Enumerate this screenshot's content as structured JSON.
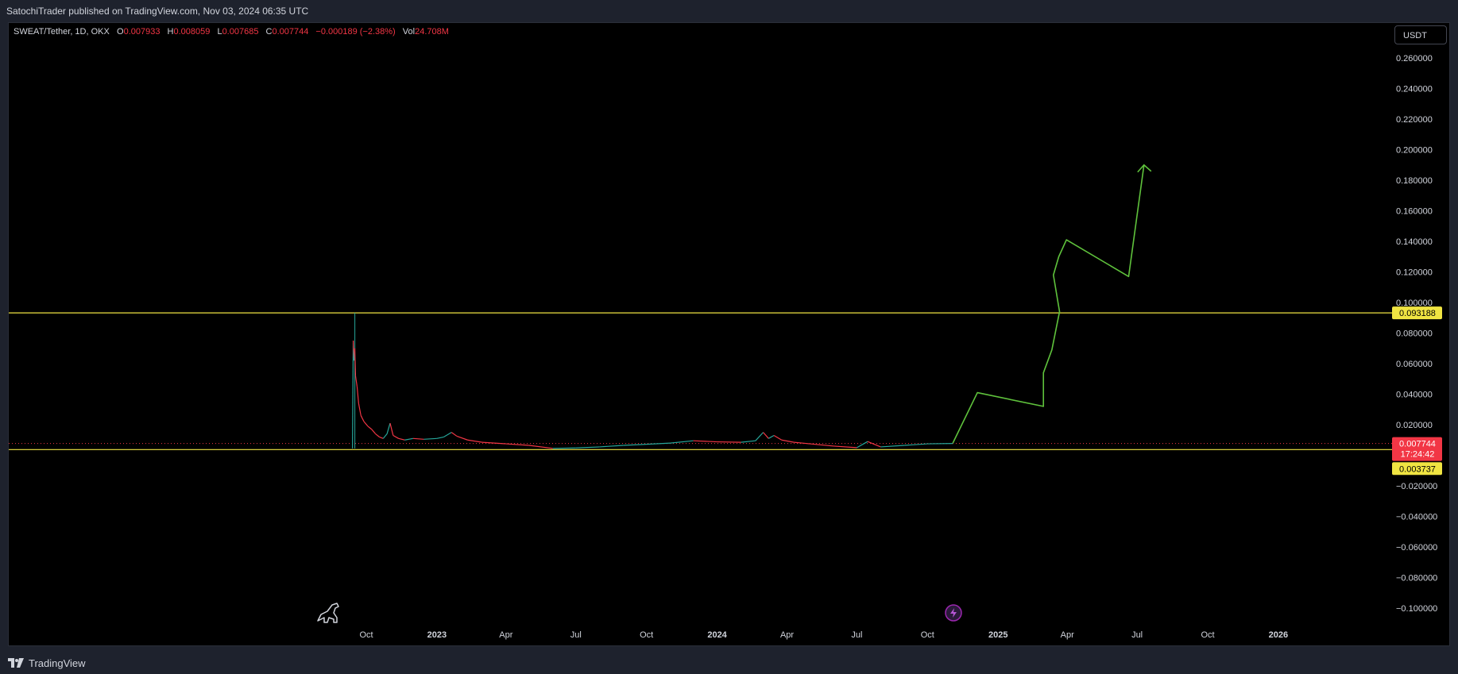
{
  "header": {
    "publish_line": "SatochiTrader published on TradingView.com, Nov 03, 2024 06:35 UTC"
  },
  "legend": {
    "symbol": "SWEAT/Tether, 1D, OKX",
    "open_label": "O",
    "open": "0.007933",
    "high_label": "H",
    "high": "0.008059",
    "low_label": "L",
    "low": "0.007685",
    "close_label": "C",
    "close": "0.007744",
    "change": "−0.000189 (−2.38%)",
    "vol_label": "Vol",
    "vol": "24.708M"
  },
  "currency_button": "USDT",
  "footer": {
    "brand": "TradingView"
  },
  "colors": {
    "background": "#000000",
    "up": "#26a69a",
    "down": "#f23645",
    "level_line": "#f0e442",
    "projection": "#5fc23c",
    "text": "#d1d4dc"
  },
  "chart_data": {
    "type": "line",
    "y_axis": {
      "ticks": [
        "0.260000",
        "0.240000",
        "0.220000",
        "0.200000",
        "0.180000",
        "0.160000",
        "0.140000",
        "0.120000",
        "0.100000",
        "0.080000",
        "0.060000",
        "0.040000",
        "0.020000",
        "−0.020000",
        "−0.040000",
        "−0.060000",
        "−0.080000",
        "−0.100000"
      ],
      "tick_values": [
        0.26,
        0.24,
        0.22,
        0.2,
        0.18,
        0.16,
        0.14,
        0.12,
        0.1,
        0.08,
        0.06,
        0.04,
        0.02,
        -0.02,
        -0.04,
        -0.06,
        -0.08,
        -0.1
      ],
      "range": [
        -0.108,
        0.27
      ]
    },
    "x_axis": {
      "ticks": [
        "Oct",
        "2023",
        "Apr",
        "Jul",
        "Oct",
        "2024",
        "Apr",
        "Jul",
        "Oct",
        "2025",
        "Apr",
        "Jul",
        "Oct",
        "2026"
      ],
      "tick_dates": [
        "2022-10-01",
        "2023-01-01",
        "2023-04-01",
        "2023-07-01",
        "2023-10-01",
        "2024-01-01",
        "2024-04-01",
        "2024-07-01",
        "2024-10-01",
        "2025-01-01",
        "2025-04-01",
        "2025-07-01",
        "2025-10-01",
        "2026-01-01"
      ]
    },
    "price_labels": [
      {
        "value": 0.093188,
        "text": "0.093188",
        "kind": "level"
      },
      {
        "value": 0.007744,
        "text": "0.007744",
        "sub": "17:24:42",
        "kind": "last"
      },
      {
        "value": 0.003737,
        "text": "0.003737",
        "kind": "level"
      }
    ],
    "horizontal_levels": [
      0.093188,
      0.003737
    ],
    "last_price": 0.007744,
    "series": [
      {
        "kind": "price",
        "points": [
          [
            "2022-09-13",
            0.0045
          ],
          [
            "2022-09-14",
            0.075
          ],
          [
            "2022-09-15",
            0.062
          ],
          [
            "2022-09-16",
            0.07
          ],
          [
            "2022-09-17",
            0.052
          ],
          [
            "2022-09-19",
            0.045
          ],
          [
            "2022-09-21",
            0.034
          ],
          [
            "2022-09-24",
            0.026
          ],
          [
            "2022-09-28",
            0.022
          ],
          [
            "2022-10-03",
            0.019
          ],
          [
            "2022-10-08",
            0.017
          ],
          [
            "2022-10-13",
            0.014
          ],
          [
            "2022-10-18",
            0.012
          ],
          [
            "2022-10-23",
            0.011
          ],
          [
            "2022-10-28",
            0.014
          ],
          [
            "2022-11-01",
            0.021
          ],
          [
            "2022-11-05",
            0.013
          ],
          [
            "2022-11-12",
            0.011
          ],
          [
            "2022-11-20",
            0.01
          ],
          [
            "2022-12-01",
            0.011
          ],
          [
            "2022-12-15",
            0.0105
          ],
          [
            "2023-01-01",
            0.011
          ],
          [
            "2023-01-10",
            0.012
          ],
          [
            "2023-01-20",
            0.015
          ],
          [
            "2023-01-27",
            0.0125
          ],
          [
            "2023-02-10",
            0.01
          ],
          [
            "2023-03-01",
            0.0085
          ],
          [
            "2023-04-01",
            0.0075
          ],
          [
            "2023-05-01",
            0.0065
          ],
          [
            "2023-06-01",
            0.0045
          ],
          [
            "2023-07-01",
            0.0048
          ],
          [
            "2023-08-01",
            0.0055
          ],
          [
            "2023-09-01",
            0.0065
          ],
          [
            "2023-10-01",
            0.0072
          ],
          [
            "2023-11-01",
            0.008
          ],
          [
            "2023-12-01",
            0.0095
          ],
          [
            "2024-01-01",
            0.0088
          ],
          [
            "2024-02-01",
            0.0085
          ],
          [
            "2024-02-20",
            0.0095
          ],
          [
            "2024-03-01",
            0.015
          ],
          [
            "2024-03-08",
            0.011
          ],
          [
            "2024-03-15",
            0.013
          ],
          [
            "2024-03-25",
            0.01
          ],
          [
            "2024-04-10",
            0.0085
          ],
          [
            "2024-05-01",
            0.0075
          ],
          [
            "2024-06-01",
            0.006
          ],
          [
            "2024-07-01",
            0.005
          ],
          [
            "2024-07-15",
            0.009
          ],
          [
            "2024-08-01",
            0.0055
          ],
          [
            "2024-09-01",
            0.0065
          ],
          [
            "2024-10-01",
            0.0075
          ],
          [
            "2024-11-03",
            0.007744
          ]
        ]
      },
      {
        "kind": "projection",
        "points": [
          [
            "2024-11-03",
            0.008
          ],
          [
            "2024-12-05",
            0.041
          ],
          [
            "2025-03-01",
            0.032
          ],
          [
            "2025-03-01",
            0.054
          ],
          [
            "2025-03-12",
            0.069
          ],
          [
            "2025-03-22",
            0.094
          ],
          [
            "2025-03-14",
            0.118
          ],
          [
            "2025-03-21",
            0.13
          ],
          [
            "2025-03-31",
            0.141
          ],
          [
            "2025-06-20",
            0.117
          ],
          [
            "2025-07-10",
            0.19
          ]
        ]
      }
    ]
  }
}
